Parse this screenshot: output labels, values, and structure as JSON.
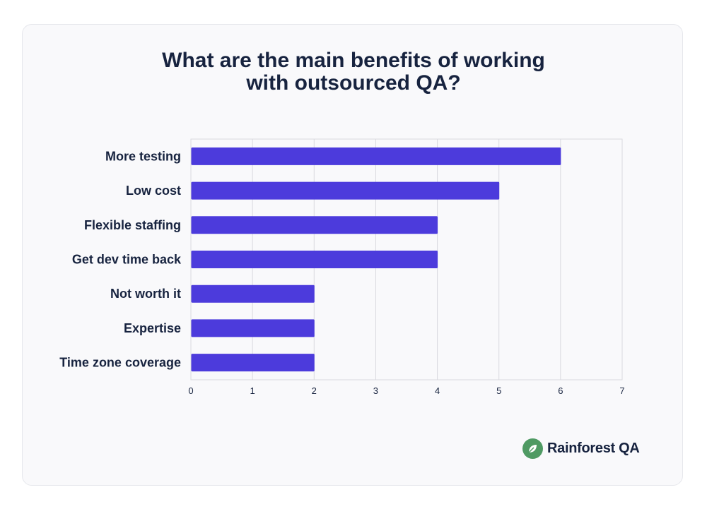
{
  "chart_data": {
    "type": "bar",
    "orientation": "horizontal",
    "title": "What are the main benefits of working with outsourced QA?",
    "title_lines": [
      "What are the main benefits of working",
      "with outsourced QA?"
    ],
    "categories": [
      "More testing",
      "Low cost",
      "Flexible staffing",
      "Get dev time back",
      "Not worth it",
      "Expertise",
      "Time zone coverage"
    ],
    "values": [
      6,
      5,
      4,
      4,
      2,
      2,
      2
    ],
    "xlabel": "",
    "ylabel": "",
    "xlim": [
      0,
      7
    ],
    "x_ticks": [
      "0",
      "1",
      "2",
      "3",
      "4",
      "5",
      "6",
      "7"
    ],
    "grid": true,
    "legend": "none",
    "bar_color": "#4c3bdc",
    "grid_color": "#d9d9df"
  },
  "brand": {
    "name": "Rainforest QA",
    "icon": "leaf-icon",
    "color": "#4f9a63"
  }
}
